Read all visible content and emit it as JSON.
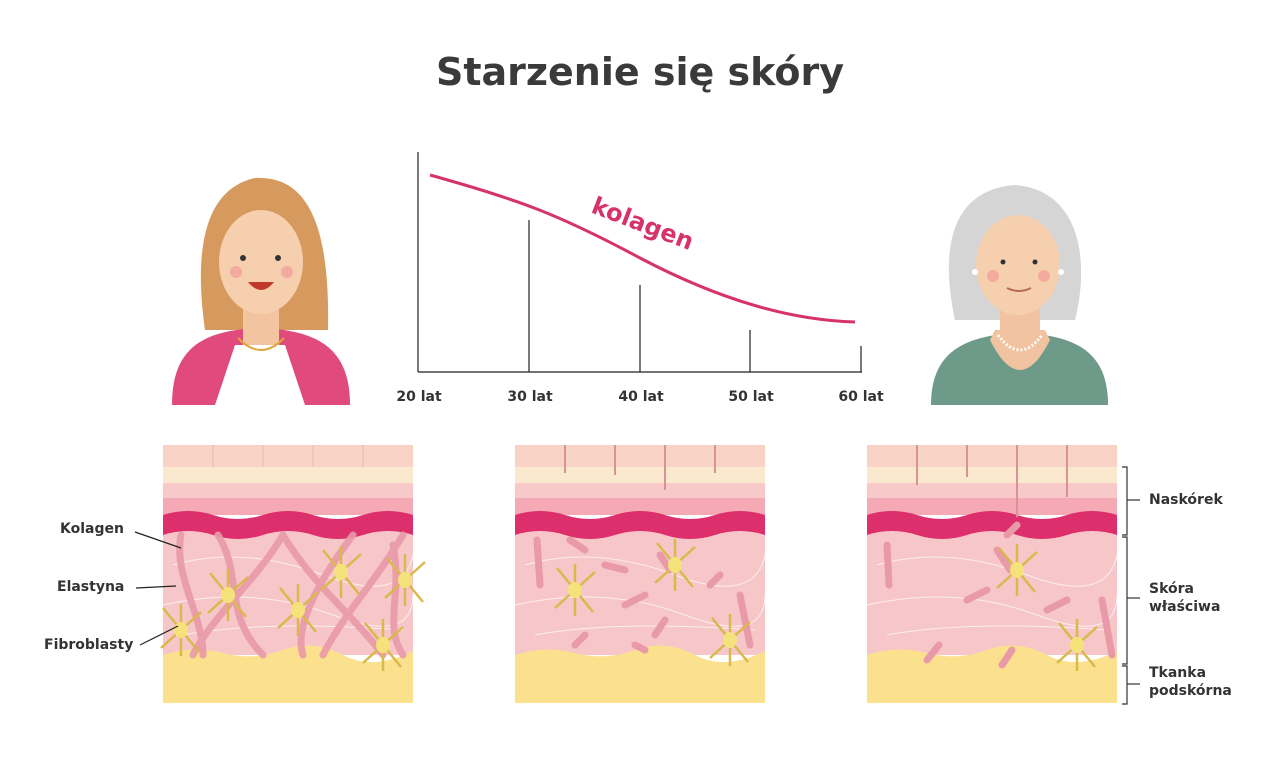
{
  "title": "Starzenie się skóry",
  "chart": {
    "curve_label": "kolagen",
    "x_ticks": [
      "20 lat",
      "30 lat",
      "40 lat",
      "50 lat",
      "60 lat"
    ],
    "curve_color": "#d6336c"
  },
  "left_labels": [
    "Kolagen",
    "Elastyna",
    "Fibroblasty"
  ],
  "right_labels": {
    "epidermis": "Naskórek",
    "dermis_1": "Skóra",
    "dermis_2": "właściwa",
    "hypodermis_1": "Tkanka",
    "hypodermis_2": "podskórna"
  },
  "colors": {
    "accent": "#dc2f6b",
    "dermis": "#f7c6c9",
    "fat": "#fbe08e",
    "fibroblast": "#d8b94a"
  }
}
